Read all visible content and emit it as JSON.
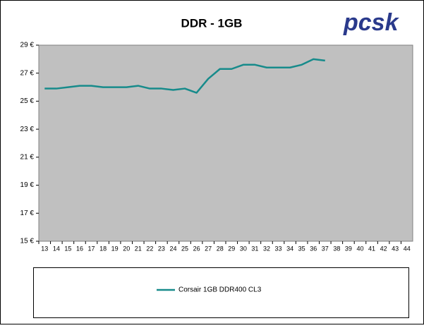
{
  "logo": "pcsk",
  "chart_data": {
    "type": "line",
    "title": "DDR - 1GB",
    "categories": [
      "13",
      "14",
      "15",
      "16",
      "17",
      "18",
      "19",
      "20",
      "21",
      "22",
      "23",
      "24",
      "25",
      "26",
      "27",
      "28",
      "29",
      "30",
      "31",
      "32",
      "33",
      "34",
      "35",
      "36",
      "37",
      "38",
      "39",
      "40",
      "41",
      "42",
      "43",
      "44"
    ],
    "series": [
      {
        "name": "Corsair 1GB DDR400 CL3",
        "color": "#178b8b",
        "values": [
          25.9,
          25.9,
          26.0,
          26.1,
          26.1,
          26.0,
          26.0,
          26.0,
          26.1,
          25.9,
          25.9,
          25.8,
          25.9,
          25.6,
          26.6,
          27.3,
          27.3,
          27.6,
          27.6,
          27.4,
          27.4,
          27.4,
          27.6,
          28.0,
          27.9,
          null,
          null,
          null,
          null,
          null,
          null,
          null
        ]
      }
    ],
    "ylim": [
      15,
      29
    ],
    "yticks": [
      {
        "value": 15,
        "label": "15 €"
      },
      {
        "value": 17,
        "label": "17 €"
      },
      {
        "value": 19,
        "label": "19 €"
      },
      {
        "value": 21,
        "label": "21 €"
      },
      {
        "value": 23,
        "label": "23 €"
      },
      {
        "value": 25,
        "label": "25 €"
      },
      {
        "value": 27,
        "label": "27 €"
      },
      {
        "value": 29,
        "label": "29 €"
      }
    ],
    "grid": false,
    "legend": "bottom"
  }
}
